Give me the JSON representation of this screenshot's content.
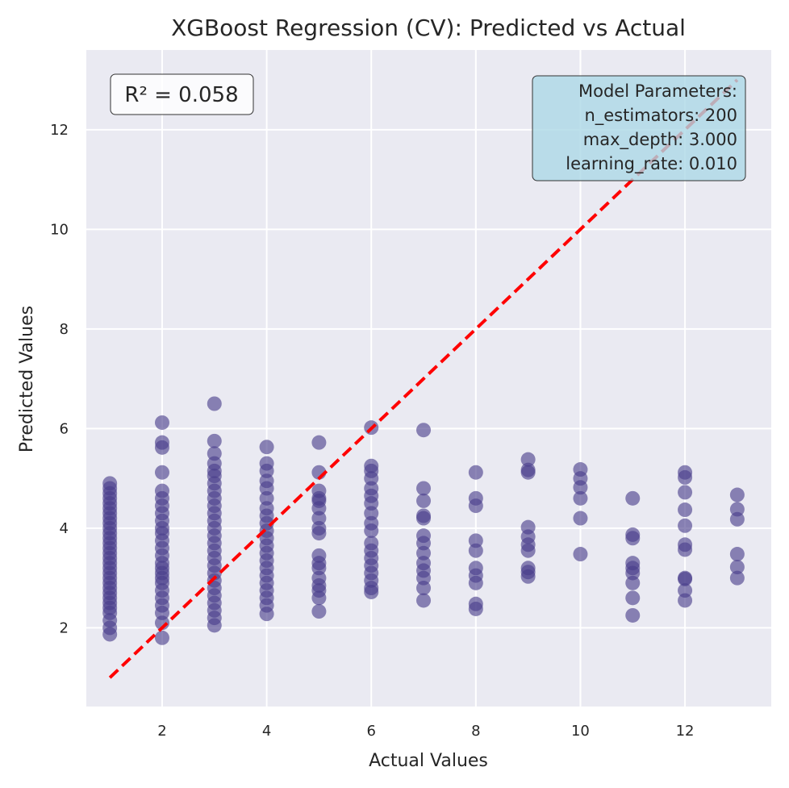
{
  "chart_data": {
    "type": "scatter",
    "title": "XGBoost Regression (CV): Predicted vs Actual",
    "xlabel": "Actual Values",
    "ylabel": "Predicted Values",
    "xlim": [
      0.55,
      13.65
    ],
    "ylim": [
      0.42,
      13.6
    ],
    "xticks": [
      2,
      4,
      6,
      8,
      10,
      12
    ],
    "yticks": [
      2,
      4,
      6,
      8,
      10,
      12
    ],
    "grid": true,
    "point_color": "#483D8B",
    "reference_line": {
      "from": [
        1,
        1
      ],
      "to": [
        13,
        13
      ],
      "color": "#FF0000",
      "style": "dashed"
    },
    "r2_label": "R² = 0.058",
    "parameters_box": {
      "lines": [
        "Model Parameters:",
        "n_estimators: 200",
        "max_depth: 3.000",
        "learning_rate: 0.010"
      ],
      "placement": "top-right",
      "fill": "#ADD8E6"
    },
    "points": [
      [
        1,
        1.87
      ],
      [
        1,
        2.0
      ],
      [
        1,
        2.15
      ],
      [
        1,
        2.3
      ],
      [
        1,
        2.4
      ],
      [
        1,
        2.5
      ],
      [
        1,
        2.6
      ],
      [
        1,
        2.7
      ],
      [
        1,
        2.8
      ],
      [
        1,
        2.9
      ],
      [
        1,
        3.0
      ],
      [
        1,
        3.1
      ],
      [
        1,
        3.2
      ],
      [
        1,
        3.3
      ],
      [
        1,
        3.4
      ],
      [
        1,
        3.5
      ],
      [
        1,
        3.6
      ],
      [
        1,
        3.7
      ],
      [
        1,
        3.8
      ],
      [
        1,
        3.9
      ],
      [
        1,
        4.0
      ],
      [
        1,
        4.1
      ],
      [
        1,
        4.2
      ],
      [
        1,
        4.3
      ],
      [
        1,
        4.4
      ],
      [
        1,
        4.5
      ],
      [
        1,
        4.6
      ],
      [
        1,
        4.7
      ],
      [
        1,
        4.8
      ],
      [
        1,
        4.9
      ],
      [
        2,
        1.8
      ],
      [
        2,
        2.1
      ],
      [
        2,
        2.3
      ],
      [
        2,
        2.45
      ],
      [
        2,
        2.6
      ],
      [
        2,
        2.75
      ],
      [
        2,
        2.9
      ],
      [
        2,
        3.0
      ],
      [
        2,
        3.1
      ],
      [
        2,
        3.2
      ],
      [
        2,
        3.3
      ],
      [
        2,
        3.45
      ],
      [
        2,
        3.6
      ],
      [
        2,
        3.75
      ],
      [
        2,
        3.9
      ],
      [
        2,
        4.0
      ],
      [
        2,
        4.15
      ],
      [
        2,
        4.3
      ],
      [
        2,
        4.45
      ],
      [
        2,
        4.6
      ],
      [
        2,
        4.75
      ],
      [
        2,
        5.12
      ],
      [
        2,
        5.62
      ],
      [
        2,
        5.72
      ],
      [
        2,
        6.12
      ],
      [
        3,
        2.05
      ],
      [
        3,
        2.2
      ],
      [
        3,
        2.35
      ],
      [
        3,
        2.5
      ],
      [
        3,
        2.65
      ],
      [
        3,
        2.8
      ],
      [
        3,
        2.95
      ],
      [
        3,
        3.1
      ],
      [
        3,
        3.25
      ],
      [
        3,
        3.4
      ],
      [
        3,
        3.55
      ],
      [
        3,
        3.7
      ],
      [
        3,
        3.85
      ],
      [
        3,
        4.0
      ],
      [
        3,
        4.15
      ],
      [
        3,
        4.3
      ],
      [
        3,
        4.45
      ],
      [
        3,
        4.6
      ],
      [
        3,
        4.75
      ],
      [
        3,
        4.9
      ],
      [
        3,
        5.05
      ],
      [
        3,
        5.15
      ],
      [
        3,
        5.3
      ],
      [
        3,
        5.5
      ],
      [
        3,
        5.75
      ],
      [
        3,
        6.5
      ],
      [
        4,
        2.28
      ],
      [
        4,
        2.45
      ],
      [
        4,
        2.6
      ],
      [
        4,
        2.75
      ],
      [
        4,
        2.9
      ],
      [
        4,
        3.05
      ],
      [
        4,
        3.2
      ],
      [
        4,
        3.35
      ],
      [
        4,
        3.5
      ],
      [
        4,
        3.65
      ],
      [
        4,
        3.8
      ],
      [
        4,
        3.95
      ],
      [
        4,
        4.1
      ],
      [
        4,
        4.25
      ],
      [
        4,
        4.4
      ],
      [
        4,
        4.6
      ],
      [
        4,
        4.8
      ],
      [
        4,
        4.95
      ],
      [
        4,
        5.15
      ],
      [
        4,
        5.3
      ],
      [
        4,
        5.63
      ],
      [
        5,
        2.33
      ],
      [
        5,
        2.6
      ],
      [
        5,
        2.75
      ],
      [
        5,
        2.85
      ],
      [
        5,
        3.0
      ],
      [
        5,
        3.2
      ],
      [
        5,
        3.3
      ],
      [
        5,
        3.45
      ],
      [
        5,
        3.9
      ],
      [
        5,
        4.0
      ],
      [
        5,
        4.2
      ],
      [
        5,
        4.4
      ],
      [
        5,
        4.55
      ],
      [
        5,
        4.6
      ],
      [
        5,
        4.75
      ],
      [
        5,
        5.12
      ],
      [
        5,
        5.72
      ],
      [
        6,
        2.72
      ],
      [
        6,
        2.8
      ],
      [
        6,
        2.95
      ],
      [
        6,
        3.1
      ],
      [
        6,
        3.25
      ],
      [
        6,
        3.4
      ],
      [
        6,
        3.55
      ],
      [
        6,
        3.7
      ],
      [
        6,
        3.95
      ],
      [
        6,
        4.1
      ],
      [
        6,
        4.3
      ],
      [
        6,
        4.5
      ],
      [
        6,
        4.65
      ],
      [
        6,
        4.8
      ],
      [
        6,
        5.0
      ],
      [
        6,
        5.15
      ],
      [
        6,
        5.25
      ],
      [
        6,
        6.02
      ],
      [
        7,
        2.55
      ],
      [
        7,
        2.8
      ],
      [
        7,
        3.0
      ],
      [
        7,
        3.15
      ],
      [
        7,
        3.3
      ],
      [
        7,
        3.5
      ],
      [
        7,
        3.7
      ],
      [
        7,
        3.85
      ],
      [
        7,
        4.2
      ],
      [
        7,
        4.25
      ],
      [
        7,
        4.55
      ],
      [
        7,
        4.8
      ],
      [
        7,
        5.97
      ],
      [
        8,
        2.38
      ],
      [
        8,
        2.48
      ],
      [
        8,
        2.9
      ],
      [
        8,
        3.05
      ],
      [
        8,
        3.2
      ],
      [
        8,
        3.55
      ],
      [
        8,
        3.75
      ],
      [
        8,
        4.45
      ],
      [
        8,
        4.6
      ],
      [
        8,
        5.12
      ],
      [
        9,
        3.03
      ],
      [
        9,
        3.12
      ],
      [
        9,
        3.2
      ],
      [
        9,
        3.55
      ],
      [
        9,
        3.67
      ],
      [
        9,
        3.83
      ],
      [
        9,
        4.02
      ],
      [
        9,
        5.12
      ],
      [
        9,
        5.17
      ],
      [
        9,
        5.38
      ],
      [
        10,
        3.48
      ],
      [
        10,
        4.2
      ],
      [
        10,
        4.6
      ],
      [
        10,
        4.82
      ],
      [
        10,
        5.0
      ],
      [
        10,
        5.18
      ],
      [
        11,
        2.25
      ],
      [
        11,
        2.6
      ],
      [
        11,
        2.9
      ],
      [
        11,
        3.1
      ],
      [
        11,
        3.2
      ],
      [
        11,
        3.3
      ],
      [
        11,
        3.8
      ],
      [
        11,
        3.87
      ],
      [
        11,
        4.6
      ],
      [
        12,
        2.55
      ],
      [
        12,
        2.75
      ],
      [
        12,
        2.98
      ],
      [
        12,
        3.0
      ],
      [
        12,
        3.57
      ],
      [
        12,
        3.67
      ],
      [
        12,
        4.05
      ],
      [
        12,
        4.37
      ],
      [
        12,
        4.72
      ],
      [
        12,
        5.02
      ],
      [
        12,
        5.12
      ],
      [
        13,
        3.0
      ],
      [
        13,
        3.22
      ],
      [
        13,
        3.48
      ],
      [
        13,
        4.18
      ],
      [
        13,
        4.38
      ],
      [
        13,
        4.67
      ]
    ]
  }
}
